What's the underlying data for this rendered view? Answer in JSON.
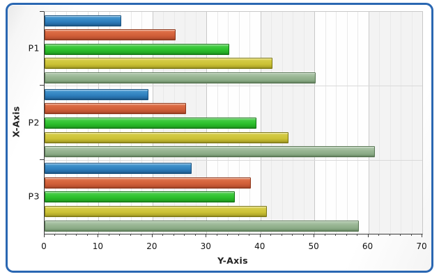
{
  "panel": {
    "frame_border_color": "#2A67B2",
    "background_color": "#FFFFFF"
  },
  "chart_data": {
    "type": "bar",
    "orientation": "horizontal",
    "title": "",
    "value_axis_label": "Y-Axis",
    "category_axis_label": "X-Axis",
    "categories": [
      "P1",
      "P2",
      "P3"
    ],
    "series": [
      {
        "name": "blue",
        "color": "#2F80BC",
        "values": [
          14,
          19,
          27
        ]
      },
      {
        "name": "red",
        "color": "#D2603A",
        "values": [
          24,
          26,
          38
        ]
      },
      {
        "name": "green",
        "color": "#2ABE2A",
        "values": [
          34,
          39,
          35
        ]
      },
      {
        "name": "yellow",
        "color": "#CBC133",
        "values": [
          42,
          45,
          41
        ]
      },
      {
        "name": "sage",
        "color": "#8BAB86",
        "values": [
          50,
          61,
          58
        ]
      }
    ],
    "xlim": [
      0,
      70
    ],
    "major_ticks": [
      0,
      10,
      20,
      30,
      40,
      50,
      60,
      70
    ],
    "minor_tick_step": 2,
    "shaded_bands": [
      [
        20,
        30
      ],
      [
        40,
        50
      ],
      [
        60,
        70
      ]
    ],
    "grid": "vertical-major-and-minor",
    "legend": "none",
    "colors": {
      "grid_minor": "#E9E9E9",
      "grid_major": "#C9C9C9",
      "band_fill": "#F3F3F3",
      "axis_line": "#3A3A3A",
      "group_separator": "#D9D9D9",
      "text": "#111111"
    }
  }
}
